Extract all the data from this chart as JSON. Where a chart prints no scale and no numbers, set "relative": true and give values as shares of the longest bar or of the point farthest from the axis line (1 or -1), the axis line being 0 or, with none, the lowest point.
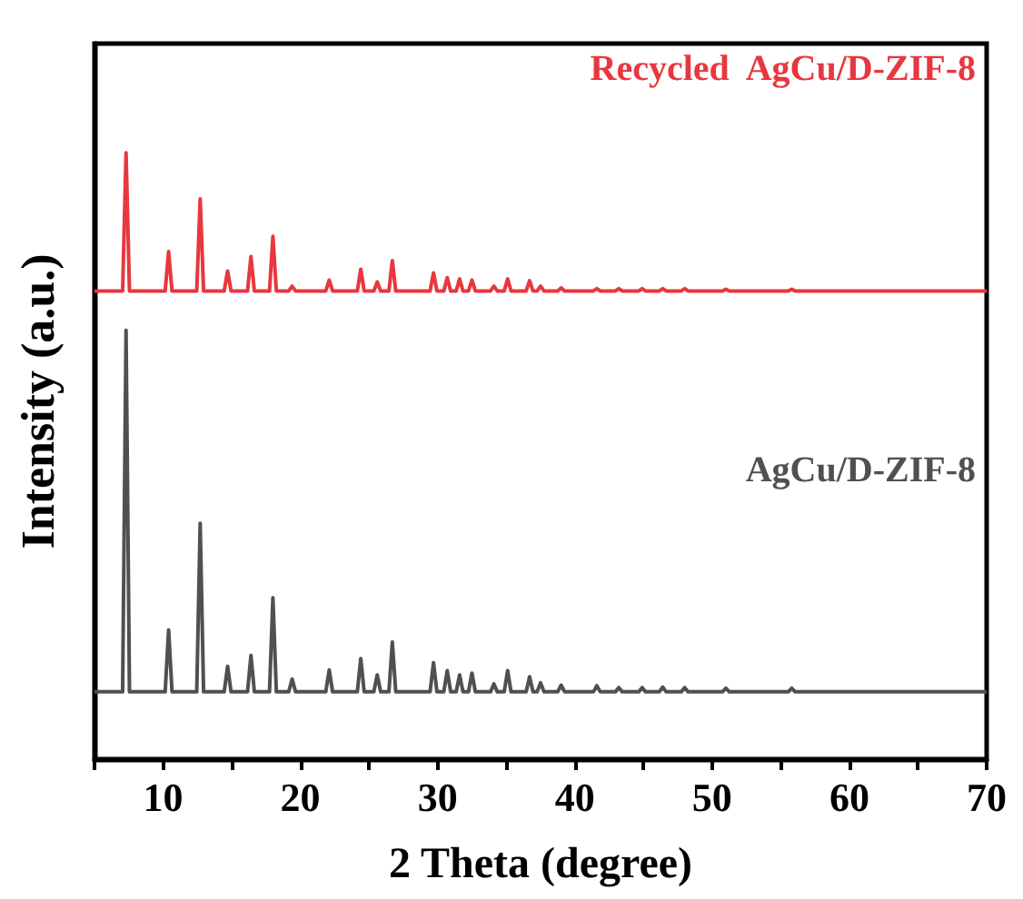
{
  "chart_data": {
    "type": "line",
    "xlabel": "2 Theta (degree)",
    "ylabel": "Intensity (a.u.)",
    "relative": true,
    "tick_labels": "x",
    "marker": "none",
    "xlim": [
      5,
      70
    ],
    "xticks": [
      {
        "value": 5,
        "label": null
      },
      10,
      {
        "value": 15,
        "label": null
      },
      20,
      {
        "value": 25,
        "label": null
      },
      30,
      {
        "value": 35,
        "label": null
      },
      40,
      {
        "value": 45,
        "label": null
      },
      50,
      {
        "value": 55,
        "label": null
      },
      60,
      {
        "value": 65,
        "label": null
      },
      70
    ],
    "x": [
      5,
      7.05,
      7.3,
      7.55,
      10.15,
      10.4,
      10.65,
      12.45,
      12.7,
      12.95,
      14.45,
      14.7,
      14.95,
      16.15,
      16.4,
      16.65,
      17.75,
      18.0,
      18.25,
      19.15,
      19.4,
      19.65,
      21.85,
      22.1,
      22.35,
      24.15,
      24.4,
      24.65,
      25.35,
      25.6,
      25.85,
      26.45,
      26.7,
      26.95,
      29.45,
      29.7,
      29.95,
      30.45,
      30.7,
      30.95,
      31.35,
      31.6,
      31.85,
      32.25,
      32.5,
      32.75,
      33.85,
      34.1,
      34.35,
      34.85,
      35.1,
      35.35,
      36.45,
      36.7,
      36.95,
      37.25,
      37.5,
      37.75,
      38.75,
      39.0,
      39.25,
      41.35,
      41.6,
      41.85,
      42.95,
      43.2,
      43.45,
      44.65,
      44.9,
      45.15,
      46.15,
      46.4,
      46.65,
      47.75,
      48.0,
      48.25,
      50.75,
      51.0,
      51.25,
      55.55,
      55.8,
      56.05,
      70
    ],
    "series": [
      {
        "name": "Recycled  AgCu/D-ZIF-8",
        "color": "#e8373f",
        "values": [
          0.772,
          0.772,
          1.0,
          0.772,
          0.772,
          0.837,
          0.772,
          0.772,
          0.924,
          0.772,
          0.772,
          0.805,
          0.772,
          0.772,
          0.829,
          0.772,
          0.772,
          0.862,
          0.772,
          0.772,
          0.78,
          0.772,
          0.772,
          0.79,
          0.772,
          0.772,
          0.808,
          0.772,
          0.772,
          0.787,
          0.772,
          0.772,
          0.822,
          0.772,
          0.772,
          0.802,
          0.772,
          0.772,
          0.794,
          0.772,
          0.772,
          0.792,
          0.772,
          0.772,
          0.79,
          0.772,
          0.772,
          0.78,
          0.772,
          0.772,
          0.792,
          0.772,
          0.772,
          0.789,
          0.772,
          0.772,
          0.78,
          0.772,
          0.772,
          0.777,
          0.772,
          0.772,
          0.776,
          0.772,
          0.772,
          0.776,
          0.772,
          0.772,
          0.776,
          0.772,
          0.772,
          0.776,
          0.772,
          0.772,
          0.776,
          0.772,
          0.772,
          0.775,
          0.772,
          0.772,
          0.775,
          0.772,
          0.772
        ]
      },
      {
        "name": "AgCu/D-ZIF-8",
        "color": "#505050",
        "values": [
          0.111,
          0.111,
          0.707,
          0.111,
          0.111,
          0.213,
          0.111,
          0.111,
          0.389,
          0.111,
          0.111,
          0.153,
          0.111,
          0.111,
          0.171,
          0.111,
          0.111,
          0.266,
          0.111,
          0.111,
          0.132,
          0.111,
          0.111,
          0.147,
          0.111,
          0.111,
          0.166,
          0.111,
          0.111,
          0.139,
          0.111,
          0.111,
          0.193,
          0.111,
          0.111,
          0.159,
          0.111,
          0.111,
          0.146,
          0.111,
          0.111,
          0.139,
          0.111,
          0.111,
          0.142,
          0.111,
          0.111,
          0.124,
          0.111,
          0.111,
          0.146,
          0.111,
          0.111,
          0.136,
          0.111,
          0.111,
          0.126,
          0.111,
          0.111,
          0.122,
          0.111,
          0.111,
          0.121,
          0.111,
          0.111,
          0.118,
          0.111,
          0.111,
          0.118,
          0.111,
          0.111,
          0.119,
          0.111,
          0.111,
          0.118,
          0.111,
          0.111,
          0.117,
          0.111,
          0.111,
          0.117,
          0.111,
          0.111
        ]
      }
    ]
  }
}
